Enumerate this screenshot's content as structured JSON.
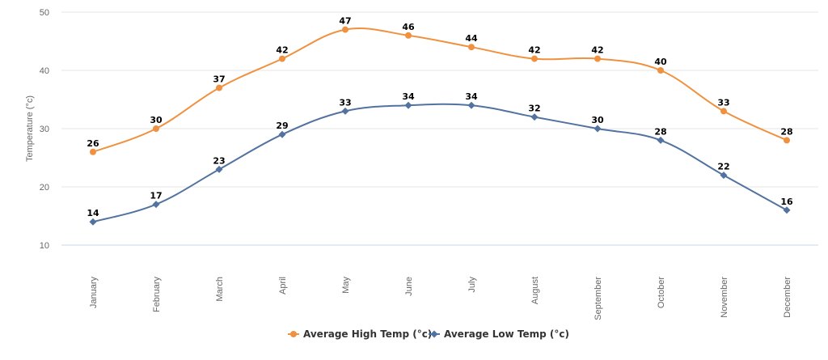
{
  "chart_data": {
    "type": "line",
    "categories": [
      "January",
      "February",
      "March",
      "April",
      "May",
      "June",
      "July",
      "August",
      "September",
      "October",
      "November",
      "December"
    ],
    "series": [
      {
        "name": "Average High Temp (°c)",
        "values": [
          26,
          30,
          37,
          42,
          47,
          46,
          44,
          42,
          42,
          40,
          33,
          28
        ],
        "color": "#f0913f",
        "marker": "circle"
      },
      {
        "name": "Average Low Temp (°c)",
        "values": [
          14,
          17,
          23,
          29,
          33,
          34,
          34,
          32,
          30,
          28,
          22,
          16
        ],
        "color": "#52729f",
        "marker": "diamond"
      }
    ],
    "ylabel": "Temperature (°c)",
    "xlabel": "",
    "ylim": [
      10,
      50
    ],
    "yticks": [
      10,
      20,
      30,
      40,
      50
    ],
    "grid": true,
    "data_labels": true,
    "legend": "bottom-center"
  }
}
